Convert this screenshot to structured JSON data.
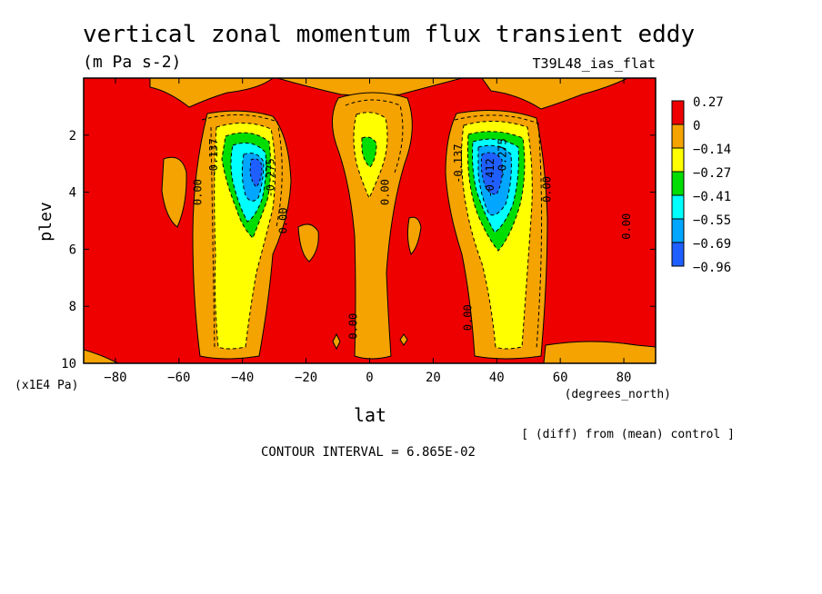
{
  "title": "vertical zonal momentum flux transient eddy",
  "units": "(m Pa s-2)",
  "run_label": "T39L48_ias_flat",
  "axes": {
    "x_label": "lat",
    "x_unit": "(degrees_north)",
    "y_label": "plev",
    "y_unit": "(x1E4 Pa)"
  },
  "diff_note": "[ (diff) from (mean) control ]",
  "contour_interval": "CONTOUR INTERVAL = 6.865E-02",
  "chart_data": {
    "type": "heatmap",
    "xlim": [
      -90,
      90
    ],
    "ylim": [
      10,
      0
    ],
    "x_ticks": [
      -80,
      -60,
      -40,
      -20,
      0,
      20,
      40,
      60,
      80
    ],
    "x_tick_labels": [
      "−80",
      "−60",
      "−40",
      "−20",
      "0",
      "20",
      "40",
      "60",
      "80"
    ],
    "y_ticks": [
      2,
      4,
      6,
      8,
      10
    ],
    "y_tick_labels": [
      "2",
      "4",
      "6",
      "8",
      "10"
    ],
    "colorbar": [
      {
        "label": "0.27",
        "color": "#ee0000"
      },
      {
        "label": "0",
        "color": "#f5a300"
      },
      {
        "label": "−0.14",
        "color": "#ffff00"
      },
      {
        "label": "−0.27",
        "color": "#00dd00"
      },
      {
        "label": "−0.41",
        "color": "#00ffff"
      },
      {
        "label": "−0.55",
        "color": "#00a6ff"
      },
      {
        "label": "−0.69",
        "color": "#1f5fff"
      },
      {
        "label": "−0.96",
        "color": null
      }
    ],
    "features": [
      {
        "lat": -36,
        "plev": 3.3,
        "min": -0.8
      },
      {
        "lat": 36,
        "plev": 3.3,
        "min": -0.96
      },
      {
        "lat": 0,
        "plev": 2.6,
        "min": -0.2
      }
    ],
    "contour_labels": [
      {
        "text": "-0.137",
        "lat": -48,
        "plev": 2.8
      },
      {
        "text": "-0.275",
        "lat": -30,
        "plev": 3.5
      },
      {
        "text": "0.00",
        "lat": -53,
        "plev": 4.0
      },
      {
        "text": "0.00",
        "lat": -26,
        "plev": 5.0
      },
      {
        "text": "0.00",
        "lat": 6,
        "plev": 4.0
      },
      {
        "text": "0.00",
        "lat": -4,
        "plev": 8.7
      },
      {
        "text": "-0.137",
        "lat": 29,
        "plev": 3.0
      },
      {
        "text": "-0.412",
        "lat": 39,
        "plev": 3.5
      },
      {
        "text": "-0.275",
        "lat": 43,
        "plev": 2.8
      },
      {
        "text": "0.00",
        "lat": 32,
        "plev": 8.4
      },
      {
        "text": "0.00",
        "lat": 57,
        "plev": 3.9
      },
      {
        "text": "0.00",
        "lat": 82,
        "plev": 5.2
      }
    ]
  }
}
